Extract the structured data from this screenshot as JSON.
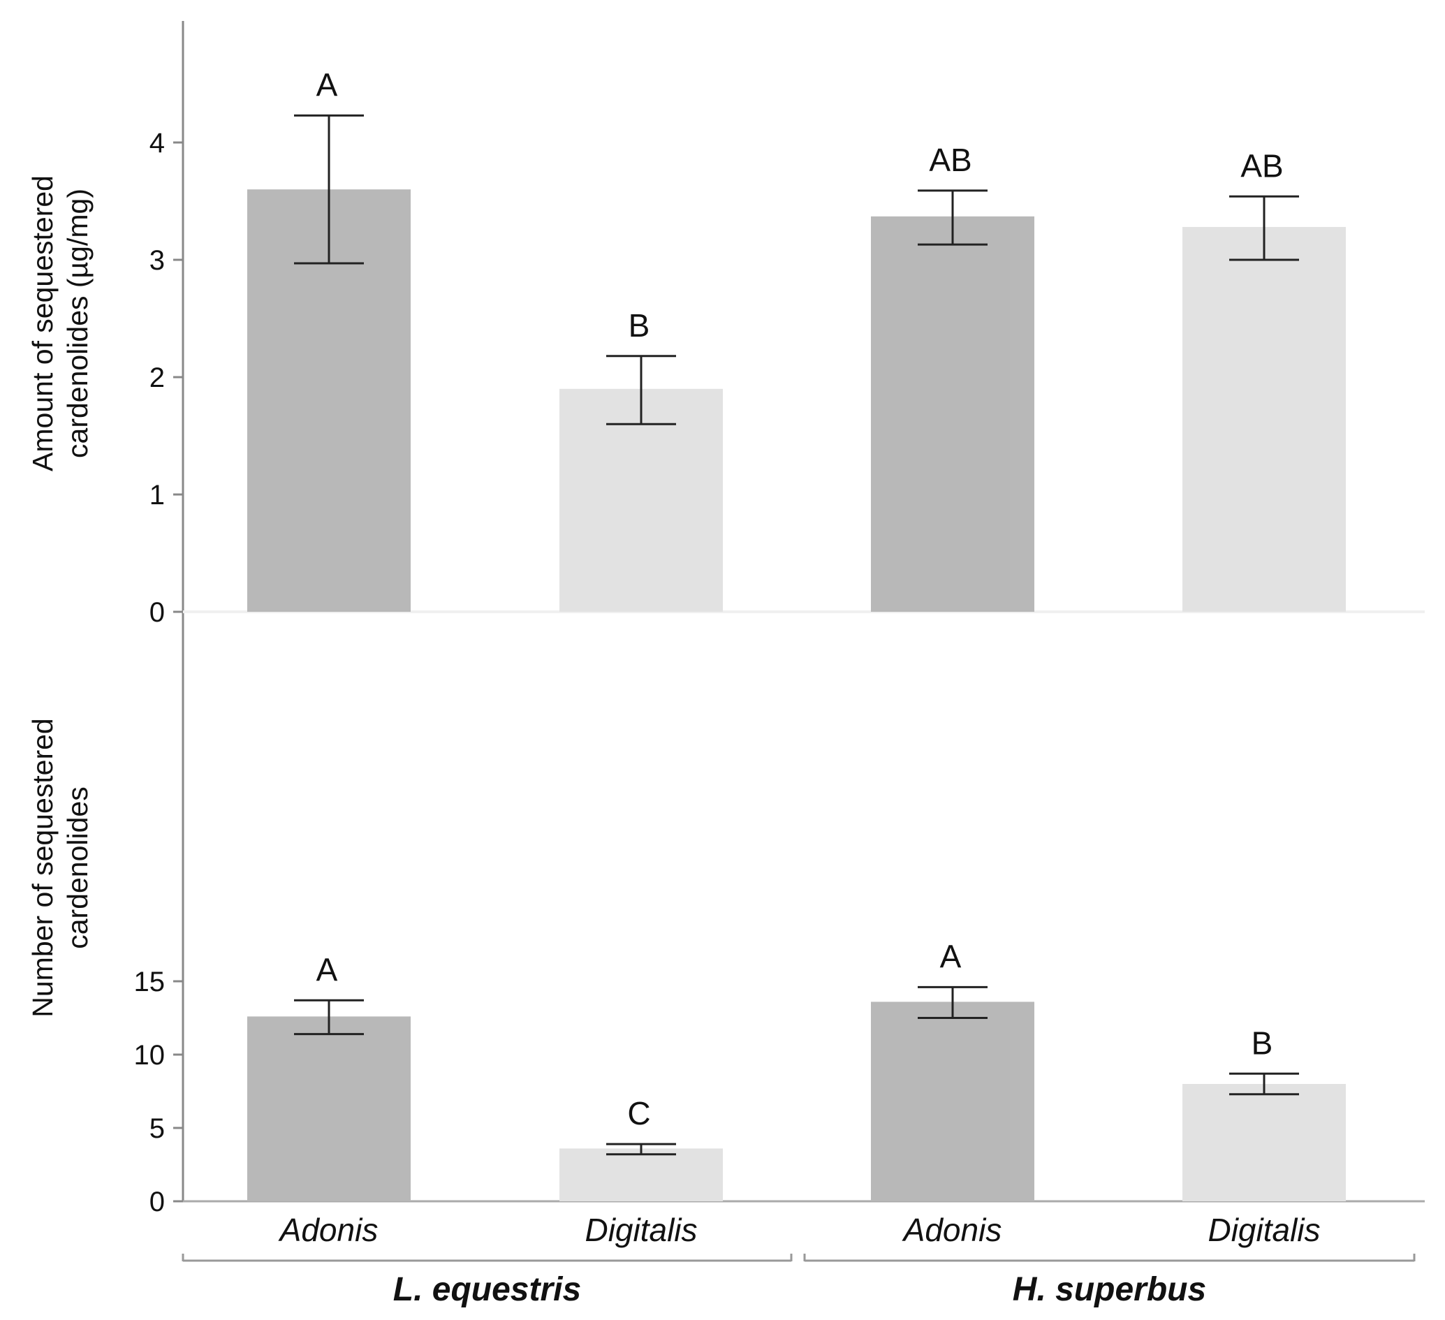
{
  "chart_data": [
    {
      "type": "bar",
      "categories": [
        "Adonis",
        "Digitalis",
        "Adonis",
        "Digitalis"
      ],
      "groups": [
        "L. equestris",
        "H. superbus"
      ],
      "values": [
        3.6,
        1.9,
        3.37,
        3.28
      ],
      "errors_low": [
        2.97,
        1.6,
        3.13,
        3.0
      ],
      "errors_high": [
        4.23,
        2.18,
        3.59,
        3.54
      ],
      "significance": [
        "A",
        "B",
        "AB",
        "AB"
      ],
      "bar_colors": [
        "#b8b8b8",
        "#e2e2e2",
        "#b8b8b8",
        "#e2e2e2"
      ],
      "ylabel": "Amount of sequestered cardenolides (µg/mg)",
      "ylabel_lines": [
        "Amount of sequestered",
        "cardenolides (µg/mg)"
      ],
      "ylim": [
        0,
        5
      ],
      "yticks": [
        0,
        1,
        2,
        3,
        4
      ],
      "grid": false
    },
    {
      "type": "bar",
      "categories": [
        "Adonis",
        "Digitalis",
        "Adonis",
        "Digitalis"
      ],
      "groups": [
        "L. equestris",
        "H. superbus"
      ],
      "values": [
        12.6,
        3.6,
        13.6,
        8.0
      ],
      "errors_low": [
        11.4,
        3.2,
        12.5,
        7.3
      ],
      "errors_high": [
        13.7,
        3.9,
        14.6,
        8.7
      ],
      "significance": [
        "A",
        "C",
        "A",
        "B"
      ],
      "bar_colors": [
        "#b8b8b8",
        "#e2e2e2",
        "#b8b8b8",
        "#e2e2e2"
      ],
      "ylabel": "Number of sequestered cardenolides",
      "ylabel_lines": [
        "Number of sequestered",
        "cardenolides"
      ],
      "ylim": [
        0,
        20
      ],
      "yticks": [
        0,
        5,
        10,
        15
      ],
      "grid": false
    }
  ],
  "x_axis": {
    "categories": [
      "Adonis",
      "Digitalis",
      "Adonis",
      "Digitalis"
    ],
    "groups": [
      "L. equestris",
      "H. superbus"
    ]
  }
}
